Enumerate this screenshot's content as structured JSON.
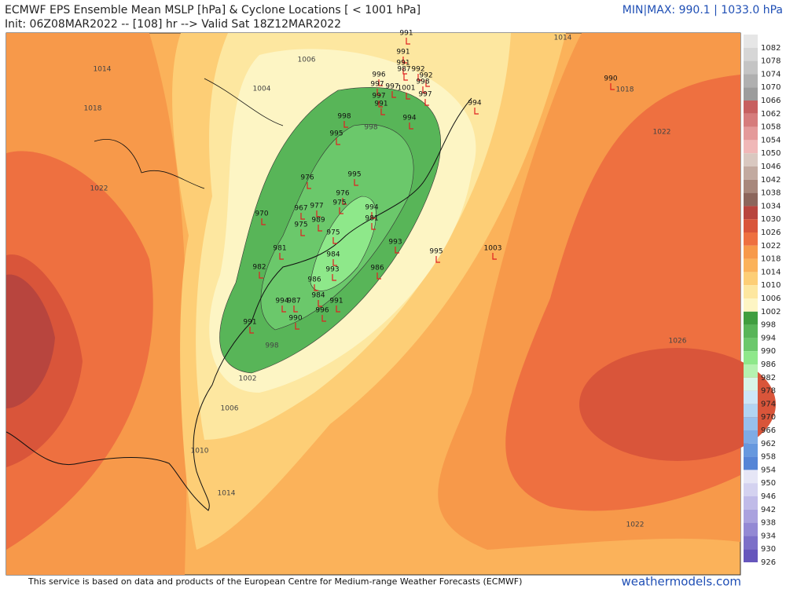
{
  "header": {
    "title": "ECMWF EPS Ensemble Mean MSLP [hPa] & Cyclone Locations [ < 1001 hPa]",
    "init": "Init: 06Z08MAR2022 -- [108] hr --> Valid Sat 18Z12MAR2022",
    "minmax": "MIN|MAX: 990.1 | 1033.0 hPa"
  },
  "colorbar": {
    "labels": [
      1082,
      1078,
      1074,
      1070,
      1066,
      1062,
      1058,
      1054,
      1050,
      1046,
      1042,
      1038,
      1034,
      1030,
      1026,
      1022,
      1018,
      1014,
      1010,
      1006,
      1002,
      998,
      994,
      990,
      986,
      982,
      978,
      974,
      970,
      966,
      962,
      958,
      954,
      950,
      946,
      942,
      938,
      934,
      930,
      926
    ]
  },
  "contours": [
    1014,
    1018,
    1022,
    1006,
    1004,
    1014,
    1018,
    1022,
    1026,
    1022,
    1010,
    1014,
    1006,
    1002,
    998,
    998
  ],
  "cyclones": [
    991,
    991,
    991,
    996,
    987,
    992,
    992,
    998,
    997,
    997,
    1001,
    997,
    997,
    991,
    990,
    994,
    998,
    994,
    995,
    976,
    995,
    976,
    970,
    967,
    977,
    975,
    994,
    981,
    989,
    975,
    975,
    993,
    995,
    1003,
    981,
    984,
    986,
    993,
    982,
    986,
    984,
    994,
    987,
    991,
    996,
    990,
    991
  ],
  "footer": {
    "notice": "This service is based on data and products of the European Centre for Medium-range Weather Forecasts (ECMWF)",
    "site": "weathermodels.com"
  }
}
